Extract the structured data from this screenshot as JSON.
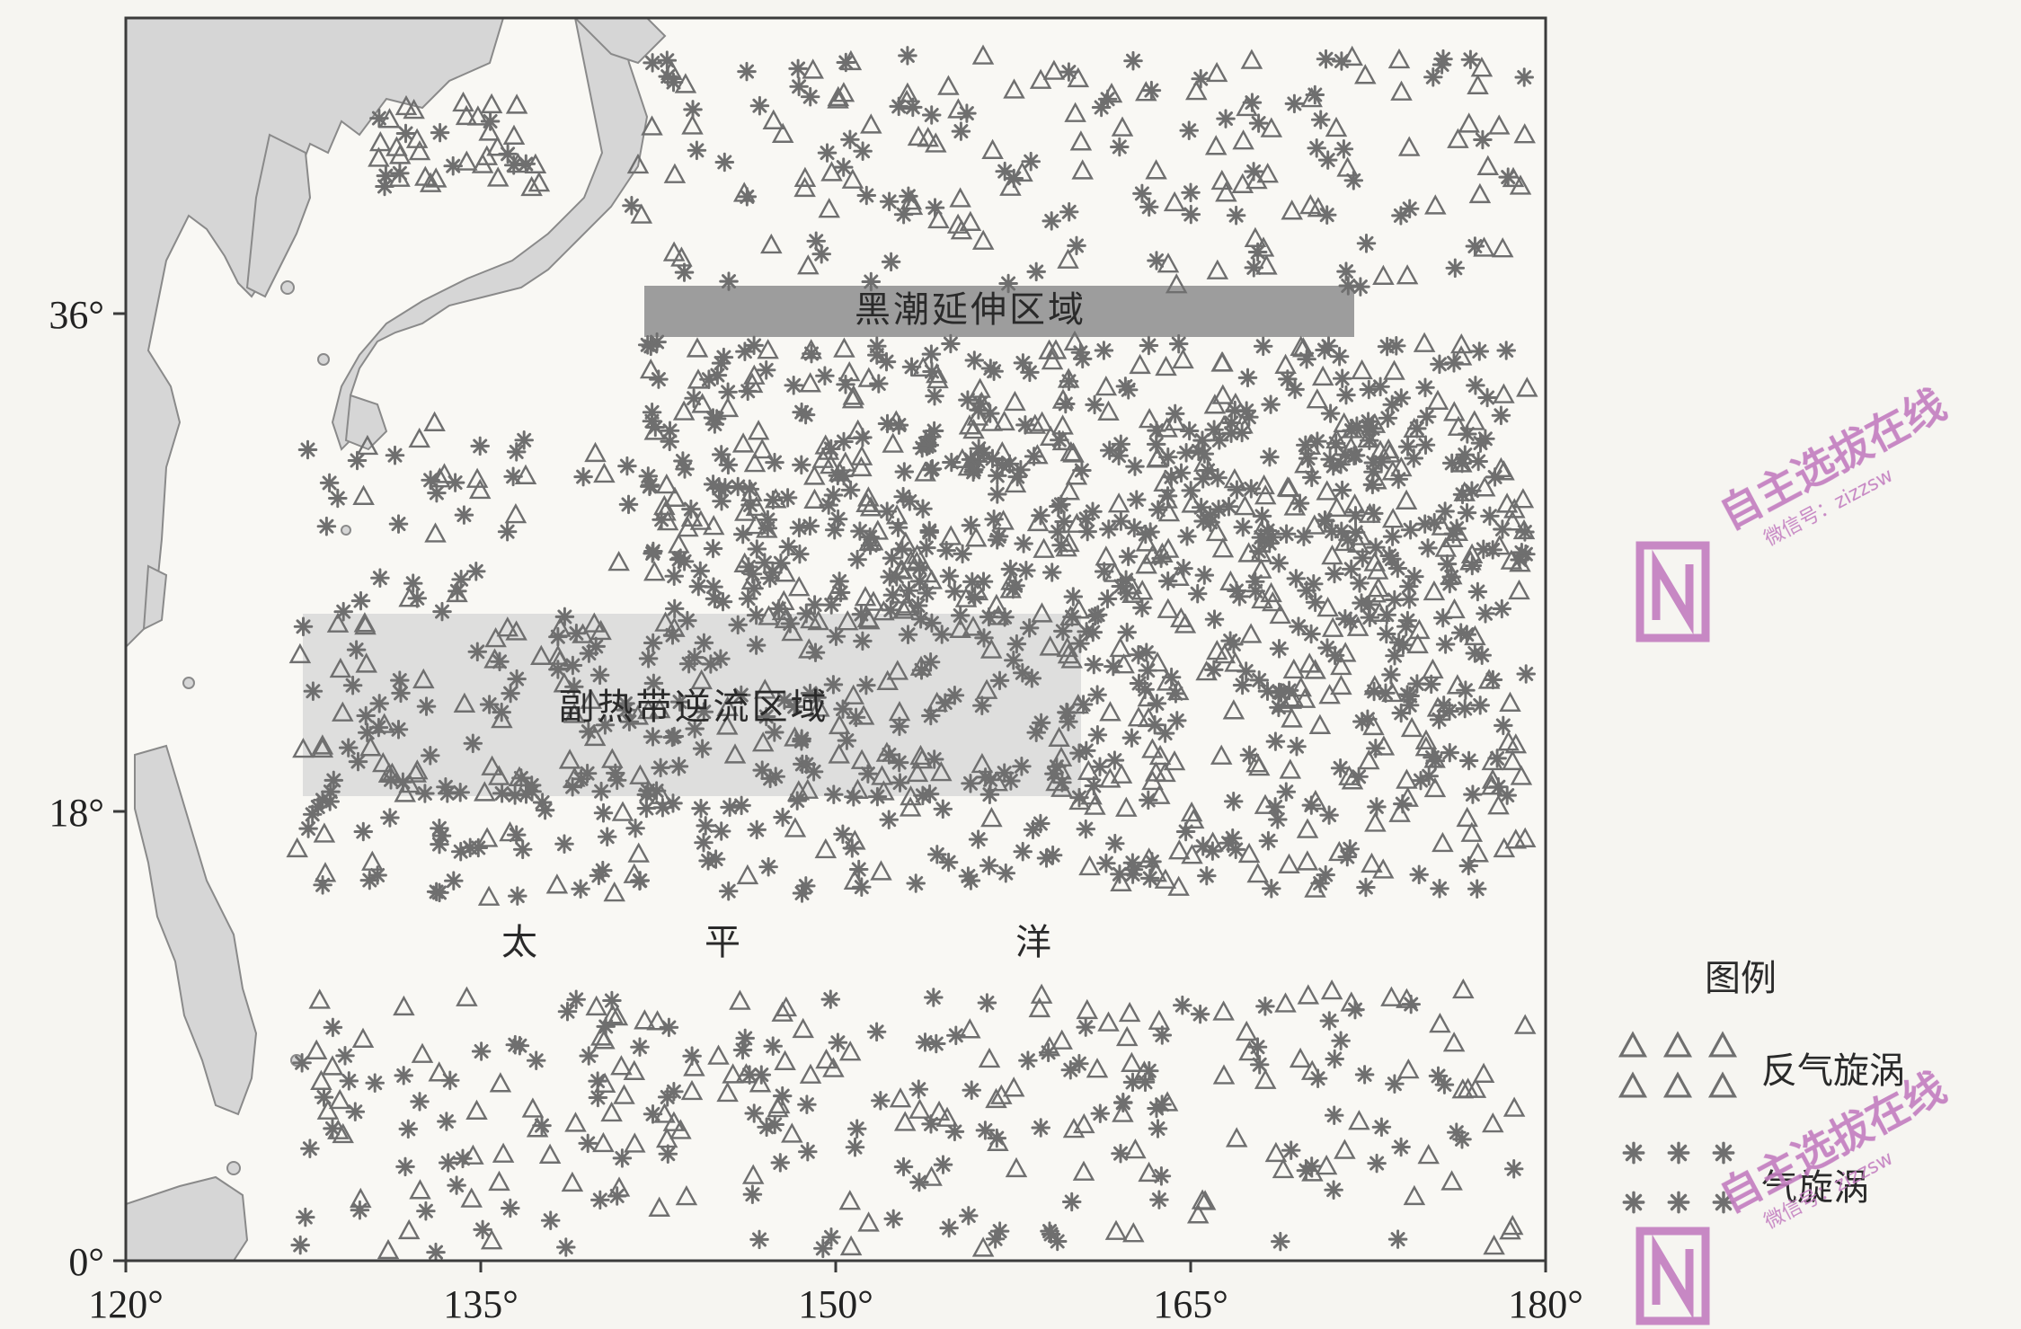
{
  "map": {
    "x_ticks": [
      "120°",
      "135°",
      "150°",
      "165°",
      "180°"
    ],
    "y_ticks": [
      "36°",
      "18°",
      "0°"
    ],
    "regions": {
      "kuroshio": "黑潮延伸区域",
      "counter_current": "副热带逆流区域"
    },
    "ocean_label": [
      "太",
      "平",
      "洋"
    ]
  },
  "legend": {
    "title": "图例",
    "anticyclonic": "反气旋涡",
    "cyclonic": "气旋涡"
  },
  "watermark": {
    "text": "自主选拔在线",
    "sub": "微信号：zizzsw"
  },
  "colors": {
    "land": "#d6d6d6",
    "ocean": "#f9f8f4",
    "marker": "#6f6f6f",
    "kuroshio_band": "#8d8d8d",
    "counter_band": "#dadada",
    "watermark": "#c27cbf"
  }
}
